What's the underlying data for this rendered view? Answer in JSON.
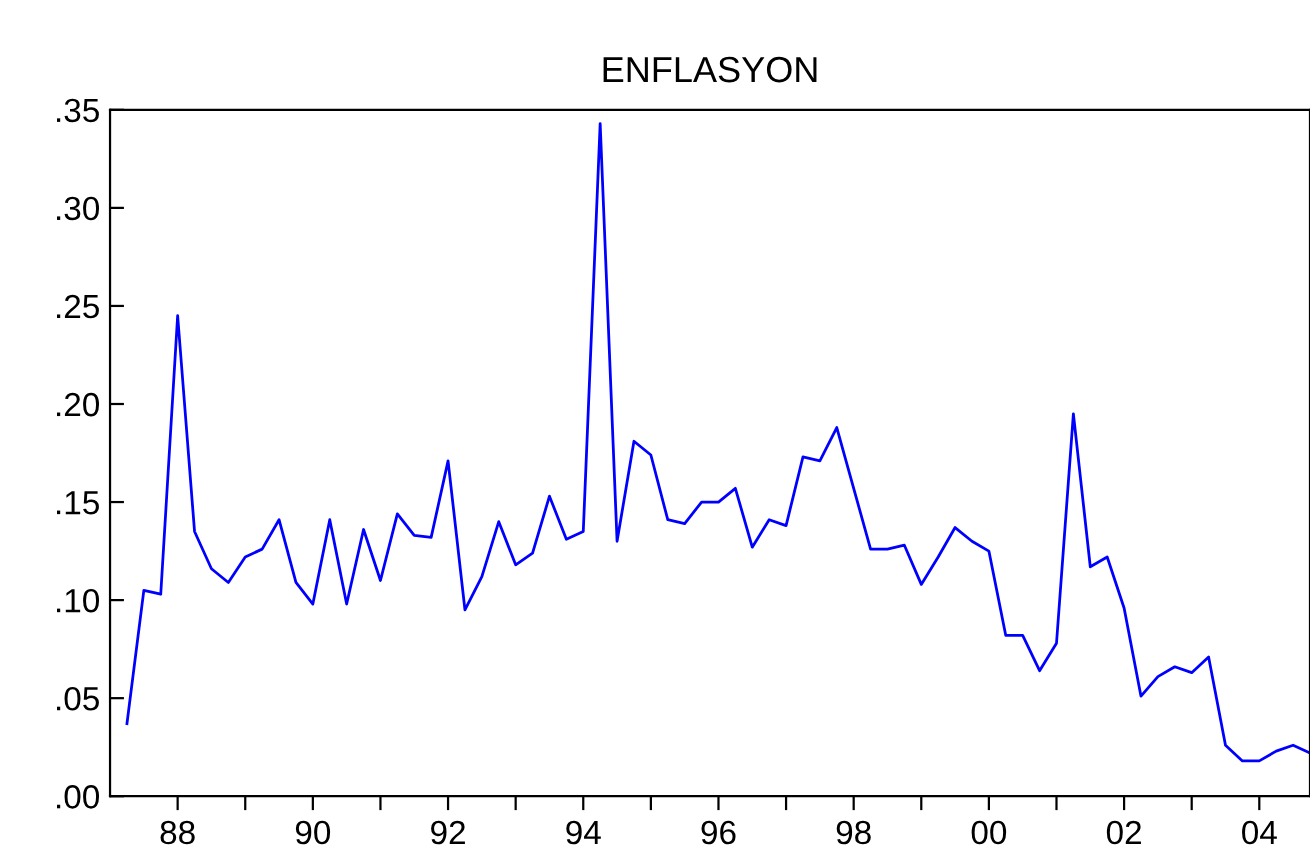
{
  "chart_data": {
    "type": "line",
    "title": "ENFLASYON",
    "x": [
      1987.25,
      1987.5,
      1987.75,
      1988,
      1988.25,
      1988.5,
      1988.75,
      1989,
      1989.25,
      1989.5,
      1989.75,
      1990,
      1990.25,
      1990.5,
      1990.75,
      1991,
      1991.25,
      1991.5,
      1991.75,
      1992,
      1992.25,
      1992.5,
      1992.75,
      1993,
      1993.25,
      1993.5,
      1993.75,
      1994,
      1994.25,
      1994.5,
      1994.75,
      1995,
      1995.25,
      1995.5,
      1995.75,
      1996,
      1996.25,
      1996.5,
      1996.75,
      1997,
      1997.25,
      1997.5,
      1997.75,
      1998,
      1998.25,
      1998.5,
      1998.75,
      1999,
      1999.25,
      1999.5,
      1999.75,
      2000,
      2000.25,
      2000.5,
      2000.75,
      2001,
      2001.25,
      2001.5,
      2001.75,
      2002,
      2002.25,
      2002.5,
      2002.75,
      2003,
      2003.25,
      2003.5,
      2003.75,
      2004,
      2004.25,
      2004.5,
      2004.75
    ],
    "series": [
      {
        "color": "#0000ff",
        "values": [
          0.037,
          0.105,
          0.103,
          0.245,
          0.135,
          0.116,
          0.109,
          0.122,
          0.126,
          0.141,
          0.109,
          0.098,
          0.141,
          0.098,
          0.136,
          0.11,
          0.144,
          0.133,
          0.132,
          0.171,
          0.095,
          0.112,
          0.14,
          0.118,
          0.124,
          0.153,
          0.131,
          0.135,
          0.343,
          0.13,
          0.181,
          0.174,
          0.141,
          0.139,
          0.15,
          0.15,
          0.157,
          0.127,
          0.141,
          0.138,
          0.173,
          0.171,
          0.188,
          0.157,
          0.126,
          0.126,
          0.128,
          0.108,
          0.122,
          0.137,
          0.13,
          0.125,
          0.082,
          0.082,
          0.064,
          0.078,
          0.195,
          0.117,
          0.122,
          0.096,
          0.051,
          0.061,
          0.066,
          0.063,
          0.071,
          0.026,
          0.018,
          0.018,
          0.023,
          0.026,
          0.022
        ]
      }
    ],
    "xlim": [
      1987.0,
      2004.75
    ],
    "xticks": [
      {
        "value": 1988,
        "label": "88"
      },
      {
        "value": 1989,
        "label": null
      },
      {
        "value": 1990,
        "label": "90"
      },
      {
        "value": 1991,
        "label": null
      },
      {
        "value": 1992,
        "label": "92"
      },
      {
        "value": 1993,
        "label": null
      },
      {
        "value": 1994,
        "label": "94"
      },
      {
        "value": 1995,
        "label": null
      },
      {
        "value": 1996,
        "label": "96"
      },
      {
        "value": 1997,
        "label": null
      },
      {
        "value": 1998,
        "label": "98"
      },
      {
        "value": 1999,
        "label": null
      },
      {
        "value": 2000,
        "label": "00"
      },
      {
        "value": 2001,
        "label": null
      },
      {
        "value": 2002,
        "label": "02"
      },
      {
        "value": 2003,
        "label": null
      },
      {
        "value": 2004,
        "label": "04"
      }
    ],
    "ylim": [
      0,
      0.35
    ],
    "yticks": [
      {
        "value": 0,
        "label": ".00"
      },
      {
        "value": 0.05,
        "label": ".05"
      },
      {
        "value": 0.1,
        "label": ".10"
      },
      {
        "value": 0.15,
        "label": ".15"
      },
      {
        "value": 0.2,
        "label": ".20"
      },
      {
        "value": 0.25,
        "label": ".25"
      },
      {
        "value": 0.3,
        "label": ".30"
      },
      {
        "value": 0.35,
        "label": ".35"
      }
    ],
    "grid": false,
    "legend": false,
    "marker": "none",
    "line_style": "solid"
  }
}
